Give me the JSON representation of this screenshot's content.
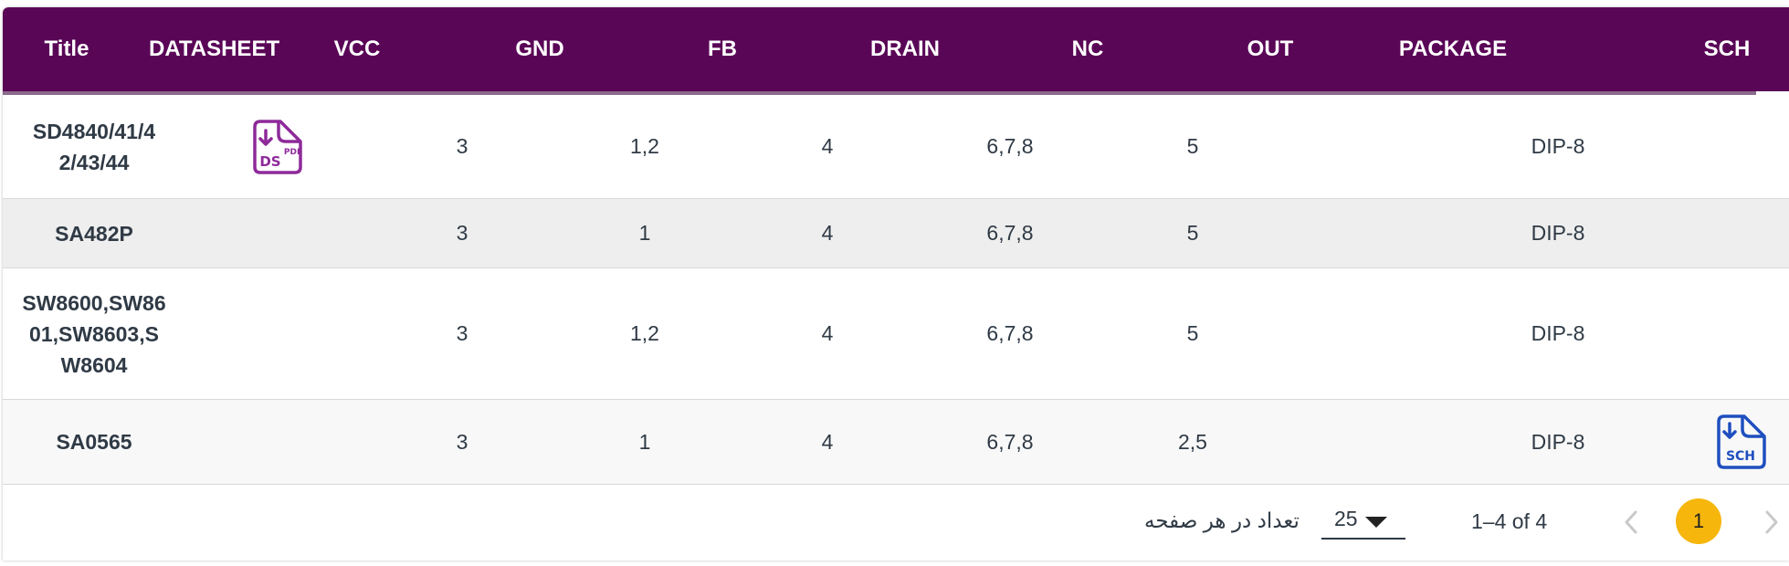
{
  "table": {
    "columns": [
      "Title",
      "DATASHEET",
      "VCC",
      "GND",
      "FB",
      "DRAIN",
      "NC",
      "OUT",
      "PACKAGE",
      "SCH"
    ],
    "rows": [
      {
        "title_lines": [
          "SD4840/41/4",
          "2/43/44"
        ],
        "datasheet": "DS",
        "vcc": "3",
        "gnd": "1,2",
        "fb": "4",
        "drain": "6,7,8",
        "nc": "5",
        "out": "",
        "package": "DIP-8",
        "sch": ""
      },
      {
        "title_lines": [
          "SA482P"
        ],
        "datasheet": "",
        "vcc": "3",
        "gnd": "1",
        "fb": "4",
        "drain": "6,7,8",
        "nc": "5",
        "out": "",
        "package": "DIP-8",
        "sch": ""
      },
      {
        "title_lines": [
          "SW8600,SW86",
          "01,SW8603,S",
          "W8604"
        ],
        "datasheet": "",
        "vcc": "3",
        "gnd": "1,2",
        "fb": "4",
        "drain": "6,7,8",
        "nc": "5",
        "out": "",
        "package": "DIP-8",
        "sch": ""
      },
      {
        "title_lines": [
          "SA0565"
        ],
        "datasheet": "",
        "vcc": "3",
        "gnd": "1",
        "fb": "4",
        "drain": "6,7,8",
        "nc": "2,5",
        "out": "",
        "package": "DIP-8",
        "sch": "SCH"
      }
    ],
    "datasheet_icon": {
      "name": "pdf-file-icon",
      "label": "DS",
      "badge": "PDF",
      "color": "#8e2a9a"
    },
    "sch_icon": {
      "name": "schematic-file-icon",
      "label": "SCH",
      "color": "#1f4fbf"
    }
  },
  "pagination": {
    "rows_per_page_label": "تعداد در هر صفحه",
    "rows_per_page_value": "25",
    "range_text": "1–4 of 4",
    "current_page": "1",
    "accent_color": "#f6b60c"
  },
  "colors": {
    "header_bg": "#5a0657",
    "header_text": "#ffffff"
  }
}
